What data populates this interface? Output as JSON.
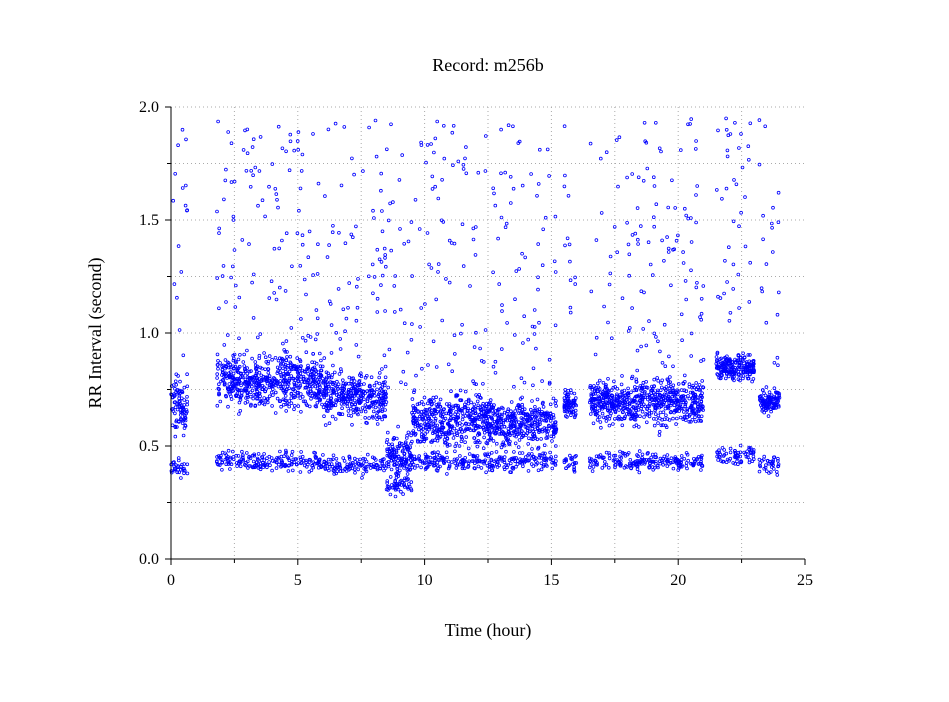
{
  "chart_data": {
    "type": "scatter",
    "title": "Record:  m256b",
    "xlabel": "Time (hour)",
    "ylabel": "RR Interval (second)",
    "xlim": [
      0,
      25
    ],
    "ylim": [
      0.0,
      2.0
    ],
    "x_ticks": [
      "0",
      "5",
      "10",
      "15",
      "20",
      "25"
    ],
    "y_ticks": [
      "0.0",
      "0.5",
      "1.0",
      "1.5",
      "2.0"
    ],
    "grid": true,
    "marker_color": "#0000ff",
    "series": [
      {
        "values_note": "approximate RR interval bands over 24 hours",
        "segments": [
          {
            "x_range": [
              0.0,
              0.65
            ],
            "main": 0.68,
            "spread": 0.12,
            "secondary": 0.4
          },
          {
            "x_range": [
              1.8,
              3.0
            ],
            "main": 0.8,
            "spread": 0.1,
            "secondary": 0.44
          },
          {
            "x_range": [
              3.0,
              6.0
            ],
            "main": 0.78,
            "spread": 0.12,
            "secondary": 0.43
          },
          {
            "x_range": [
              6.0,
              8.5
            ],
            "main": 0.72,
            "spread": 0.1,
            "secondary": 0.42
          },
          {
            "x_range": [
              8.5,
              9.5
            ],
            "main": 0.45,
            "spread": 0.1,
            "secondary": 0.32
          },
          {
            "x_range": [
              9.5,
              12.5
            ],
            "main": 0.62,
            "spread": 0.12,
            "secondary": 0.43
          },
          {
            "x_range": [
              12.5,
              15.2
            ],
            "main": 0.6,
            "spread": 0.1,
            "secondary": 0.43
          },
          {
            "x_range": [
              15.5,
              16.0
            ],
            "main": 0.68,
            "spread": 0.05,
            "secondary": 0.43
          },
          {
            "x_range": [
              16.5,
              21.0
            ],
            "main": 0.7,
            "spread": 0.1,
            "secondary": 0.43
          },
          {
            "x_range": [
              21.5,
              23.0
            ],
            "main": 0.85,
            "spread": 0.06,
            "secondary": 0.46
          },
          {
            "x_range": [
              23.2,
              24.0
            ],
            "main": 0.7,
            "spread": 0.06,
            "secondary": 0.42
          }
        ]
      }
    ]
  }
}
